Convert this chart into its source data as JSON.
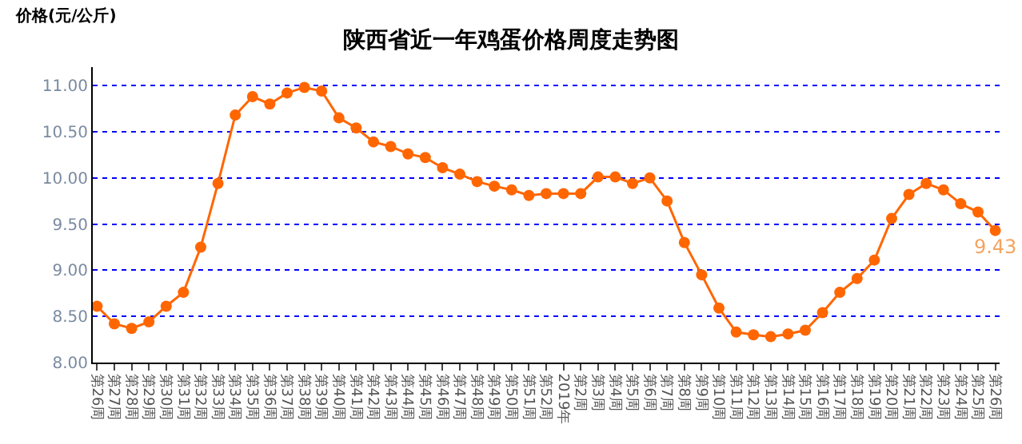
{
  "chart_data": {
    "type": "line",
    "title": "陕西省近一年鸡蛋价格周度走势图",
    "ylabel": "价格(元/公斤)",
    "categories": [
      "第26周",
      "第27周",
      "第28周",
      "第29周",
      "第30周",
      "第31周",
      "第32周",
      "第33周",
      "第34周",
      "第35周",
      "第36周",
      "第37周",
      "第38周",
      "第39周",
      "第40周",
      "第41周",
      "第42周",
      "第43周",
      "第44周",
      "第45周",
      "第46周",
      "第47周",
      "第48周",
      "第49周",
      "第50周",
      "第51周",
      "第52周",
      "2019年",
      "第2周",
      "第3周",
      "第4周",
      "第5周",
      "第6周",
      "第7周",
      "第8周",
      "第9周",
      "第10周",
      "第11周",
      "第12周",
      "第13周",
      "第14周",
      "第15周",
      "第16周",
      "第17周",
      "第18周",
      "第19周",
      "第20周",
      "第21周",
      "第22周",
      "第23周",
      "第24周",
      "第25周",
      "第26周"
    ],
    "series": [
      {
        "color": "#ff6600",
        "values": [
          8.61,
          8.42,
          8.37,
          8.44,
          8.61,
          8.76,
          9.25,
          9.94,
          10.68,
          10.88,
          10.8,
          10.92,
          10.98,
          10.94,
          10.65,
          10.54,
          10.39,
          10.34,
          10.26,
          10.22,
          10.11,
          10.04,
          9.96,
          9.91,
          9.87,
          9.81,
          9.83,
          9.83,
          9.83,
          10.01,
          10.01,
          9.94,
          10.0,
          9.75,
          9.3,
          8.95,
          8.59,
          8.33,
          8.3,
          8.28,
          8.31,
          8.35,
          8.54,
          8.76,
          8.91,
          9.11,
          9.56,
          9.82,
          9.94,
          9.87,
          9.72,
          9.63,
          9.43
        ],
        "value_labels": [
          null,
          null,
          null,
          null,
          null,
          null,
          null,
          null,
          null,
          null,
          null,
          null,
          null,
          null,
          null,
          null,
          null,
          null,
          null,
          null,
          null,
          null,
          null,
          null,
          null,
          null,
          null,
          null,
          null,
          null,
          null,
          null,
          null,
          null,
          null,
          null,
          null,
          null,
          null,
          null,
          null,
          null,
          null,
          null,
          null,
          null,
          null,
          null,
          null,
          null,
          null,
          null,
          "9.43"
        ]
      }
    ],
    "ylim": [
      8,
      11.2
    ],
    "yticks": [
      {
        "value": 8,
        "label": "8.00"
      },
      {
        "value": 8.5,
        "label": "8.50"
      },
      {
        "value": 9,
        "label": "9.00"
      },
      {
        "value": 9.5,
        "label": "9.50"
      },
      {
        "value": 10,
        "label": "10.00"
      },
      {
        "value": 10.5,
        "label": "10.50"
      },
      {
        "value": 11,
        "label": "11.00"
      }
    ],
    "grid": "y",
    "marker": "circle",
    "line_style": "solid"
  }
}
